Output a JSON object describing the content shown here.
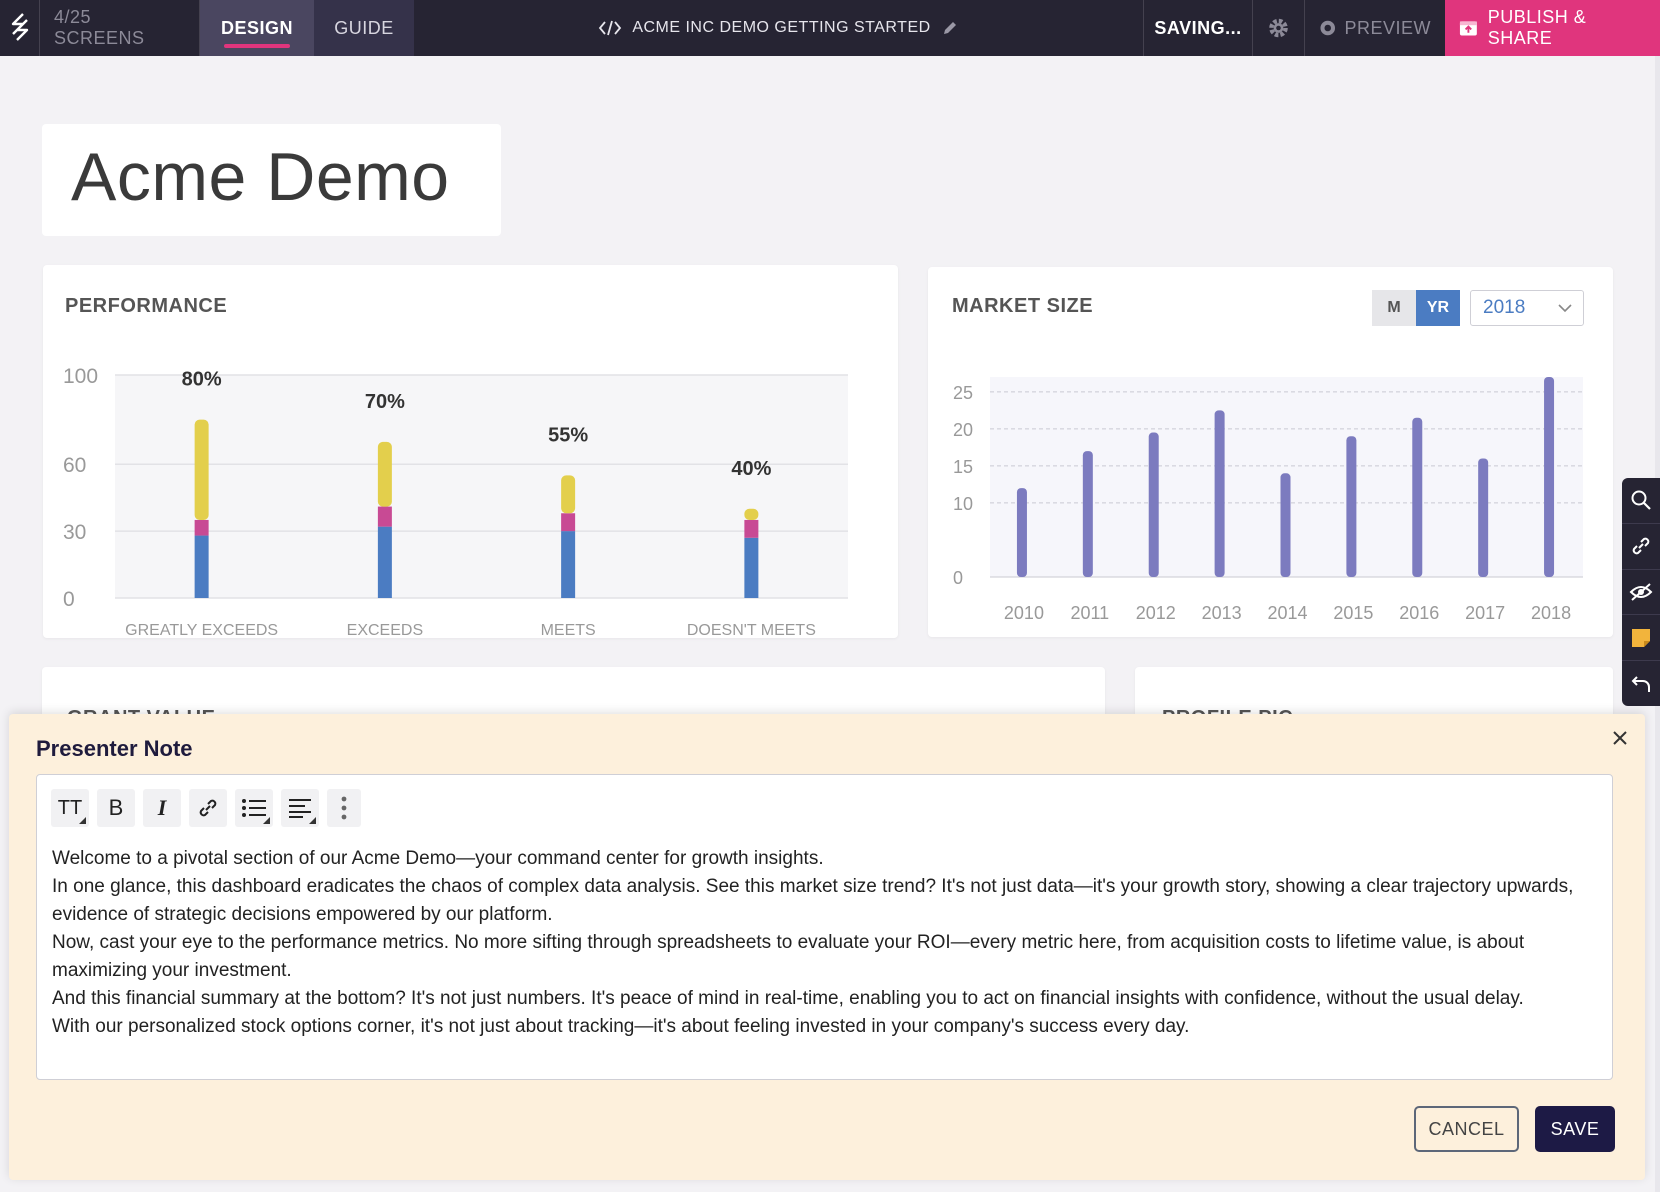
{
  "topbar": {
    "screens": "4/25 SCREENS",
    "tabs": [
      {
        "label": "DESIGN",
        "active": true
      },
      {
        "label": "GUIDE",
        "active": false
      }
    ],
    "project_title": "ACME INC DEMO GETTING STARTED",
    "status": "SAVING...",
    "preview_label": "PREVIEW",
    "publish_label": "PUBLISH & SHARE",
    "accent_color": "#e0357d",
    "bar_color": "#262433"
  },
  "page_title": "Acme Demo",
  "performance": {
    "title": "PERFORMANCE",
    "chart_data": {
      "type": "bar",
      "stacked": true,
      "categories": [
        "GREATLY EXCEEDS",
        "EXCEEDS",
        "MEETS",
        "DOESN'T MEETS"
      ],
      "value_labels": [
        "80%",
        "70%",
        "55%",
        "40%"
      ],
      "series": [
        {
          "values": [
            28,
            32,
            30,
            27
          ],
          "color": "#4b7cc2"
        },
        {
          "values": [
            7,
            9,
            8,
            8
          ],
          "color": "#c84a94"
        },
        {
          "values": [
            45,
            29,
            17,
            5
          ],
          "color": "#e3cf4c"
        }
      ],
      "yticks": [
        "0",
        "30",
        "60",
        "100"
      ],
      "ylim": [
        0,
        100
      ],
      "grid": true
    }
  },
  "market_size": {
    "title": "MARKET SIZE",
    "toggle": {
      "m_label": "M",
      "yr_label": "YR",
      "selected": "YR"
    },
    "year_select": "2018",
    "chart_data": {
      "type": "bar",
      "categories": [
        "2010",
        "2011",
        "2012",
        "2013",
        "2014",
        "2015",
        "2016",
        "2017",
        "2018"
      ],
      "values": [
        12,
        17,
        19.5,
        22.5,
        14,
        19,
        21.5,
        16,
        27
      ],
      "color": "#7c7bbf",
      "yticks": [
        "0",
        "10",
        "15",
        "20",
        "25"
      ],
      "ylim": [
        0,
        27
      ],
      "grid": true
    }
  },
  "lower_cards": {
    "grant": "GRANT VALUE",
    "profile": "PROFILE PIC"
  },
  "side_tools": [
    "search-icon",
    "link-icon",
    "hide-icon",
    "note-icon",
    "undo-icon"
  ],
  "presenter_note": {
    "title": "Presenter Note",
    "toolbar": [
      "text-size-icon",
      "bold-icon",
      "italic-icon",
      "link-icon",
      "list-icon",
      "align-icon",
      "more-icon"
    ],
    "toolbar_letters": {
      "text_size": "TT",
      "bold": "B",
      "italic": "I"
    },
    "paragraphs": [
      "Welcome to a pivotal section of our Acme Demo—your command center for growth insights.",
      "In one glance, this dashboard eradicates the chaos of complex data analysis. See this market size trend? It's not just data—it's your growth story, showing a clear trajectory upwards, evidence of strategic decisions empowered by our platform.",
      "Now, cast your eye to the performance metrics. No more sifting through spreadsheets to evaluate your ROI—every metric here, from acquisition costs to lifetime value, is about maximizing your investment.",
      "And this financial summary at the bottom? It's not just numbers. It's peace of mind in real-time, enabling you to act on financial insights with confidence, without the usual delay.",
      "With our personalized stock options corner, it's not just about tracking—it's about feeling invested in your company's success every day."
    ],
    "cancel_label": "CANCEL",
    "save_label": "SAVE"
  }
}
